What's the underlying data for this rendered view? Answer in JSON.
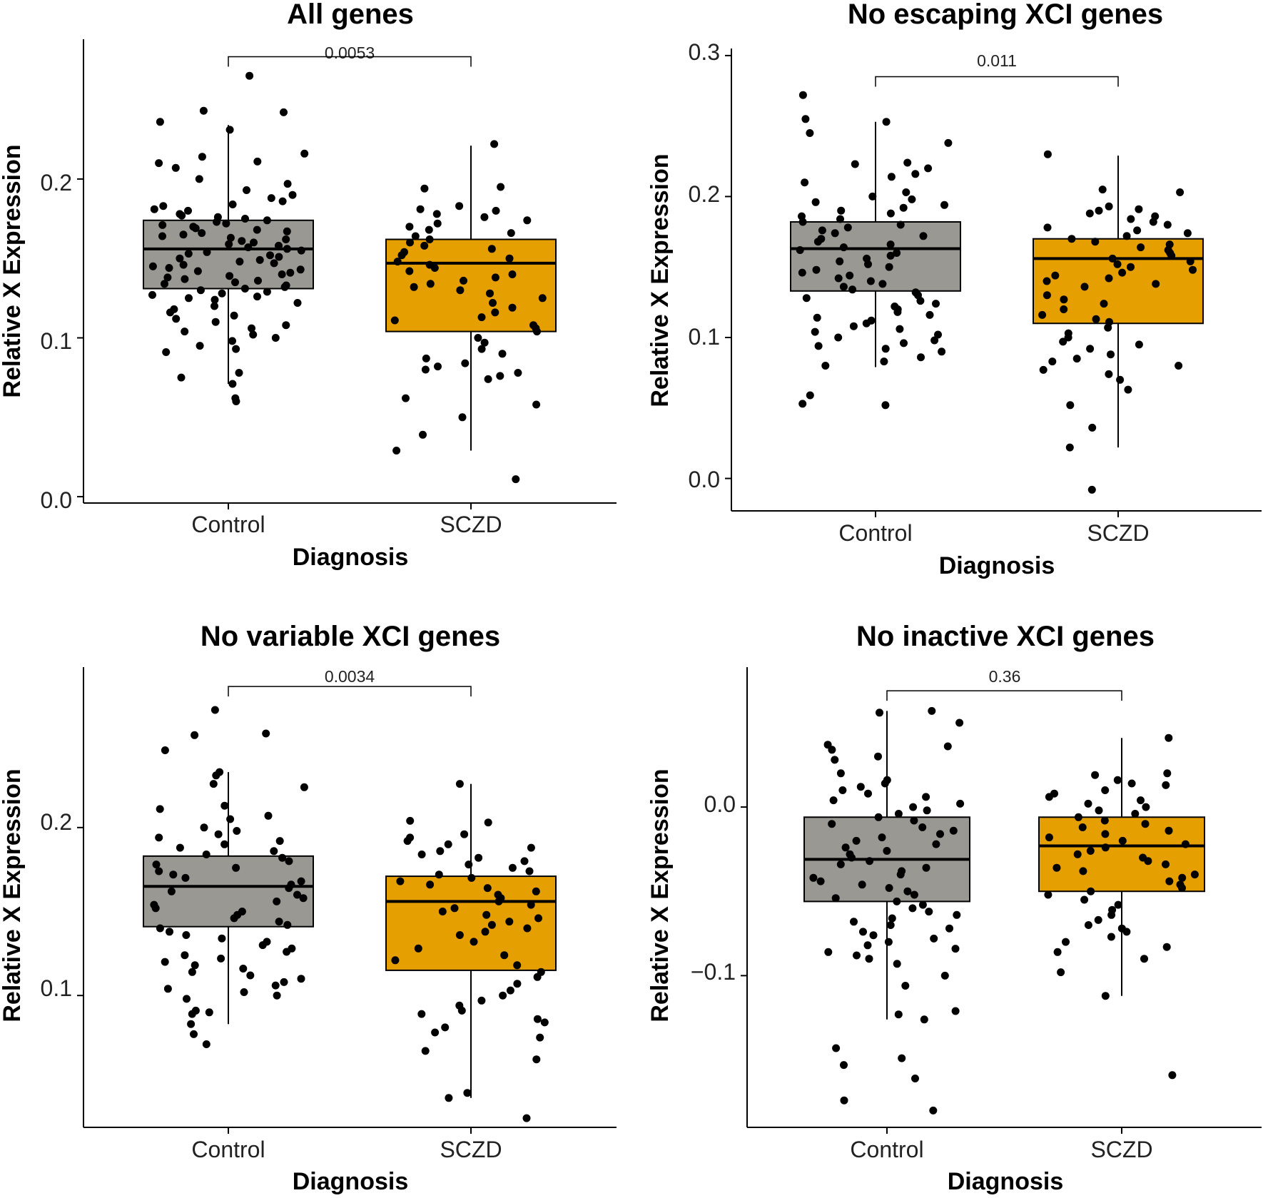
{
  "figure": {
    "background": "#ffffff",
    "box_colors": {
      "Control": "#999893",
      "SCZD": "#e69f00"
    },
    "point_color": "#000000"
  },
  "chart_data": [
    {
      "type": "box",
      "title": "All genes",
      "xlabel": "Diagnosis",
      "ylabel": "Relative X Expression",
      "categories": [
        "Control",
        "SCZD"
      ],
      "ylim": [
        -0.004,
        0.288
      ],
      "yticks": [
        0.0,
        0.1,
        0.2
      ],
      "ytick_labels": [
        "0.0",
        "0.1",
        "0.2"
      ],
      "pvalue": "0.0053",
      "bracket_y": 0.277,
      "grid": false,
      "legend": "none",
      "boxes": [
        {
          "group": "Control",
          "min": 0.071,
          "q1": 0.131,
          "median": 0.156,
          "q3": 0.174,
          "max": 0.234
        },
        {
          "group": "SCZD",
          "min": 0.029,
          "q1": 0.104,
          "median": 0.147,
          "q3": 0.162,
          "max": 0.221
        }
      ],
      "points": {
        "Control": [
          0.265,
          0.243,
          0.242,
          0.236,
          0.231,
          0.216,
          0.214,
          0.211,
          0.21,
          0.207,
          0.2,
          0.197,
          0.193,
          0.19,
          0.188,
          0.186,
          0.184,
          0.183,
          0.181,
          0.18,
          0.178,
          0.177,
          0.176,
          0.175,
          0.174,
          0.173,
          0.172,
          0.171,
          0.17,
          0.169,
          0.168,
          0.167,
          0.166,
          0.165,
          0.164,
          0.163,
          0.162,
          0.161,
          0.16,
          0.159,
          0.158,
          0.157,
          0.156,
          0.155,
          0.154,
          0.153,
          0.152,
          0.151,
          0.15,
          0.149,
          0.148,
          0.147,
          0.146,
          0.145,
          0.144,
          0.143,
          0.142,
          0.141,
          0.14,
          0.139,
          0.138,
          0.137,
          0.136,
          0.135,
          0.134,
          0.133,
          0.132,
          0.131,
          0.13,
          0.129,
          0.128,
          0.127,
          0.126,
          0.125,
          0.124,
          0.122,
          0.12,
          0.118,
          0.116,
          0.114,
          0.112,
          0.11,
          0.108,
          0.106,
          0.104,
          0.102,
          0.1,
          0.098,
          0.095,
          0.093,
          0.091,
          0.078,
          0.075,
          0.071,
          0.062,
          0.06
        ],
        "SCZD": [
          0.222,
          0.195,
          0.194,
          0.183,
          0.181,
          0.18,
          0.178,
          0.176,
          0.174,
          0.172,
          0.17,
          0.168,
          0.166,
          0.164,
          0.162,
          0.16,
          0.158,
          0.156,
          0.154,
          0.152,
          0.15,
          0.148,
          0.146,
          0.144,
          0.142,
          0.14,
          0.138,
          0.136,
          0.134,
          0.132,
          0.13,
          0.128,
          0.125,
          0.122,
          0.119,
          0.116,
          0.113,
          0.111,
          0.108,
          0.106,
          0.104,
          0.1,
          0.097,
          0.093,
          0.09,
          0.087,
          0.084,
          0.082,
          0.08,
          0.078,
          0.076,
          0.074,
          0.062,
          0.058,
          0.05,
          0.039,
          0.029,
          0.011
        ]
      }
    },
    {
      "type": "box",
      "title": "No escaping XCI genes",
      "xlabel": "Diagnosis",
      "ylabel": "Relative X Expression",
      "categories": [
        "Control",
        "SCZD"
      ],
      "ylim": [
        -0.023,
        0.305
      ],
      "yticks": [
        0.0,
        0.1,
        0.2,
        0.3
      ],
      "ytick_labels": [
        "0.0",
        "0.1",
        "0.2",
        "0.3"
      ],
      "pvalue": "0.011",
      "bracket_y": 0.285,
      "grid": false,
      "legend": "none",
      "boxes": [
        {
          "group": "Control",
          "min": 0.079,
          "q1": 0.133,
          "median": 0.163,
          "q3": 0.182,
          "max": 0.253
        },
        {
          "group": "SCZD",
          "min": 0.022,
          "q1": 0.11,
          "median": 0.156,
          "q3": 0.17,
          "max": 0.229
        }
      ],
      "points": {
        "Control": [
          0.272,
          0.255,
          0.253,
          0.245,
          0.238,
          0.224,
          0.223,
          0.22,
          0.216,
          0.214,
          0.21,
          0.203,
          0.2,
          0.198,
          0.196,
          0.194,
          0.192,
          0.19,
          0.188,
          0.186,
          0.184,
          0.182,
          0.18,
          0.178,
          0.176,
          0.174,
          0.172,
          0.17,
          0.168,
          0.166,
          0.164,
          0.162,
          0.16,
          0.158,
          0.156,
          0.154,
          0.152,
          0.15,
          0.148,
          0.146,
          0.144,
          0.142,
          0.14,
          0.138,
          0.136,
          0.134,
          0.132,
          0.13,
          0.128,
          0.126,
          0.124,
          0.122,
          0.12,
          0.118,
          0.116,
          0.114,
          0.112,
          0.11,
          0.108,
          0.106,
          0.104,
          0.102,
          0.1,
          0.098,
          0.096,
          0.094,
          0.092,
          0.09,
          0.086,
          0.083,
          0.08,
          0.059,
          0.053,
          0.052
        ],
        "SCZD": [
          0.23,
          0.205,
          0.203,
          0.193,
          0.191,
          0.19,
          0.188,
          0.186,
          0.184,
          0.182,
          0.18,
          0.178,
          0.176,
          0.174,
          0.172,
          0.17,
          0.168,
          0.166,
          0.164,
          0.162,
          0.16,
          0.158,
          0.156,
          0.154,
          0.152,
          0.15,
          0.148,
          0.146,
          0.144,
          0.142,
          0.14,
          0.138,
          0.136,
          0.13,
          0.127,
          0.124,
          0.12,
          0.116,
          0.113,
          0.111,
          0.107,
          0.103,
          0.1,
          0.097,
          0.095,
          0.092,
          0.088,
          0.085,
          0.083,
          0.08,
          0.077,
          0.074,
          0.07,
          0.063,
          0.052,
          0.036,
          0.022,
          -0.008
        ]
      }
    },
    {
      "type": "box",
      "title": "No variable XCI genes",
      "xlabel": "Diagnosis",
      "ylabel": "Relative X Expression",
      "categories": [
        "Control",
        "SCZD"
      ],
      "ylim": [
        0.0215,
        0.2955
      ],
      "yticks": [
        0.1,
        0.2
      ],
      "ytick_labels": [
        "0.1",
        "0.2"
      ],
      "pvalue": "0.0034",
      "bracket_y": 0.284,
      "grid": false,
      "legend": "none",
      "boxes": [
        {
          "group": "Control",
          "min": 0.083,
          "q1": 0.141,
          "median": 0.165,
          "q3": 0.183,
          "max": 0.233
        },
        {
          "group": "SCZD",
          "min": 0.039,
          "q1": 0.115,
          "median": 0.156,
          "q3": 0.171,
          "max": 0.226
        }
      ],
      "points": {
        "Control": [
          0.27,
          0.256,
          0.255,
          0.246,
          0.233,
          0.231,
          0.226,
          0.224,
          0.213,
          0.211,
          0.207,
          0.205,
          0.2,
          0.198,
          0.196,
          0.194,
          0.192,
          0.19,
          0.188,
          0.186,
          0.184,
          0.182,
          0.18,
          0.178,
          0.176,
          0.174,
          0.172,
          0.17,
          0.168,
          0.166,
          0.164,
          0.162,
          0.16,
          0.158,
          0.156,
          0.154,
          0.152,
          0.15,
          0.148,
          0.146,
          0.144,
          0.142,
          0.14,
          0.138,
          0.136,
          0.134,
          0.132,
          0.13,
          0.128,
          0.126,
          0.124,
          0.122,
          0.12,
          0.118,
          0.116,
          0.114,
          0.112,
          0.11,
          0.108,
          0.106,
          0.104,
          0.102,
          0.1,
          0.098,
          0.091,
          0.09,
          0.089,
          0.083,
          0.077,
          0.071
        ],
        "SCZD": [
          0.226,
          0.204,
          0.203,
          0.196,
          0.194,
          0.192,
          0.19,
          0.188,
          0.186,
          0.184,
          0.182,
          0.18,
          0.178,
          0.176,
          0.174,
          0.172,
          0.17,
          0.168,
          0.166,
          0.164,
          0.162,
          0.16,
          0.158,
          0.156,
          0.154,
          0.152,
          0.15,
          0.148,
          0.146,
          0.144,
          0.142,
          0.14,
          0.138,
          0.136,
          0.132,
          0.128,
          0.124,
          0.121,
          0.118,
          0.114,
          0.111,
          0.107,
          0.103,
          0.1,
          0.097,
          0.094,
          0.091,
          0.089,
          0.086,
          0.084,
          0.081,
          0.078,
          0.075,
          0.067,
          0.062,
          0.042,
          0.039,
          0.027
        ]
      }
    },
    {
      "type": "box",
      "title": "No inactive XCI genes",
      "xlabel": "Diagnosis",
      "ylabel": "Relative X Expression",
      "categories": [
        "Control",
        "SCZD"
      ],
      "ylim": [
        -0.19,
        0.083
      ],
      "yticks": [
        -0.1,
        0.0
      ],
      "ytick_labels": [
        "−0.1",
        "0.0"
      ],
      "pvalue": "0.36",
      "bracket_y": 0.069,
      "grid": false,
      "legend": "none",
      "boxes": [
        {
          "group": "Control",
          "min": -0.126,
          "q1": -0.056,
          "median": -0.031,
          "q3": -0.006,
          "max": 0.057
        },
        {
          "group": "SCZD",
          "min": -0.112,
          "q1": -0.05,
          "median": -0.023,
          "q3": -0.006,
          "max": 0.041
        }
      ],
      "points": {
        "Control": [
          0.057,
          0.056,
          0.05,
          0.037,
          0.036,
          0.034,
          0.03,
          0.028,
          0.02,
          0.016,
          0.014,
          0.012,
          0.01,
          0.008,
          0.006,
          0.004,
          0.002,
          0.0,
          -0.002,
          -0.004,
          -0.006,
          -0.008,
          -0.01,
          -0.012,
          -0.014,
          -0.016,
          -0.018,
          -0.02,
          -0.022,
          -0.024,
          -0.026,
          -0.028,
          -0.03,
          -0.032,
          -0.034,
          -0.036,
          -0.038,
          -0.04,
          -0.042,
          -0.044,
          -0.046,
          -0.048,
          -0.05,
          -0.052,
          -0.054,
          -0.056,
          -0.058,
          -0.06,
          -0.062,
          -0.064,
          -0.066,
          -0.068,
          -0.07,
          -0.072,
          -0.074,
          -0.076,
          -0.078,
          -0.08,
          -0.082,
          -0.084,
          -0.086,
          -0.088,
          -0.09,
          -0.093,
          -0.1,
          -0.106,
          -0.121,
          -0.123,
          -0.126,
          -0.143,
          -0.149,
          -0.153,
          -0.161,
          -0.174,
          -0.18
        ],
        "SCZD": [
          0.041,
          0.02,
          0.019,
          0.016,
          0.014,
          0.013,
          0.01,
          0.008,
          0.006,
          0.004,
          0.002,
          0.0,
          -0.002,
          -0.004,
          -0.006,
          -0.008,
          -0.01,
          -0.012,
          -0.014,
          -0.016,
          -0.018,
          -0.02,
          -0.022,
          -0.024,
          -0.026,
          -0.028,
          -0.03,
          -0.032,
          -0.034,
          -0.036,
          -0.038,
          -0.04,
          -0.042,
          -0.044,
          -0.046,
          -0.048,
          -0.05,
          -0.052,
          -0.055,
          -0.058,
          -0.061,
          -0.064,
          -0.067,
          -0.07,
          -0.072,
          -0.074,
          -0.077,
          -0.08,
          -0.083,
          -0.086,
          -0.09,
          -0.098,
          -0.112,
          -0.159
        ]
      }
    }
  ]
}
